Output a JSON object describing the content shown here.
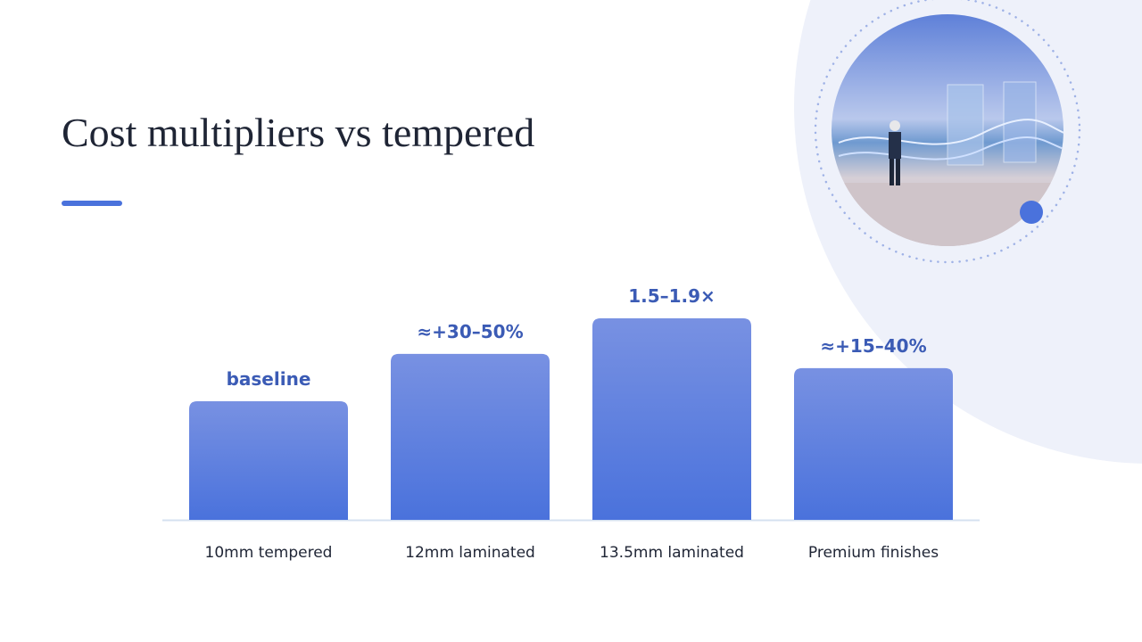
{
  "chart_data": {
    "type": "bar",
    "title": "Cost multipliers vs tempered",
    "categories": [
      "10mm tempered",
      "12mm laminated",
      "13.5mm laminated",
      "Premium finishes"
    ],
    "values": [
      1,
      1.4,
      1.7,
      1.28
    ],
    "value_labels": [
      "baseline",
      "≈+30–50%",
      "1.5–1.9×",
      "≈+15–40%"
    ],
    "color": "#4a72dc"
  }
}
